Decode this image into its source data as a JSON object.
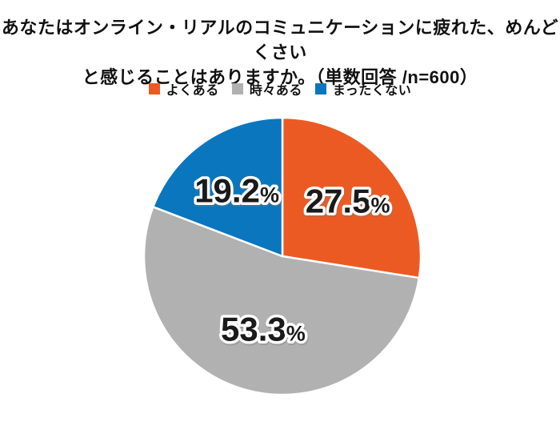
{
  "title": {
    "line1": "あなたはオンライン・リアルのコミュニケーションに疲れた、めんどくさい",
    "line2": "と感じることはありますか。（単数回答 /n=600）"
  },
  "colors": {
    "background": "#FFFFFF",
    "text": "#111111",
    "label_outline": "#FFFFFF",
    "slice_border": "#FFFFFF"
  },
  "chart_data": {
    "type": "pie",
    "title": "あなたはオンライン・リアルのコミュニケーションに疲れた、めんどくさいと感じることはありますか。（単数回答 /n=600）",
    "n_label": "n=600",
    "categories": [
      "よくある",
      "時々ある",
      "まったくない"
    ],
    "values": [
      27.5,
      53.3,
      19.2
    ],
    "unit": "%",
    "data_labels": [
      "27.5%",
      "53.3%",
      "19.2%"
    ],
    "colors": [
      "#EC5A24",
      "#B1B1B1",
      "#0A76BE"
    ],
    "legend_position": "top",
    "start_angle": "12-oclock",
    "direction": "clockwise"
  }
}
